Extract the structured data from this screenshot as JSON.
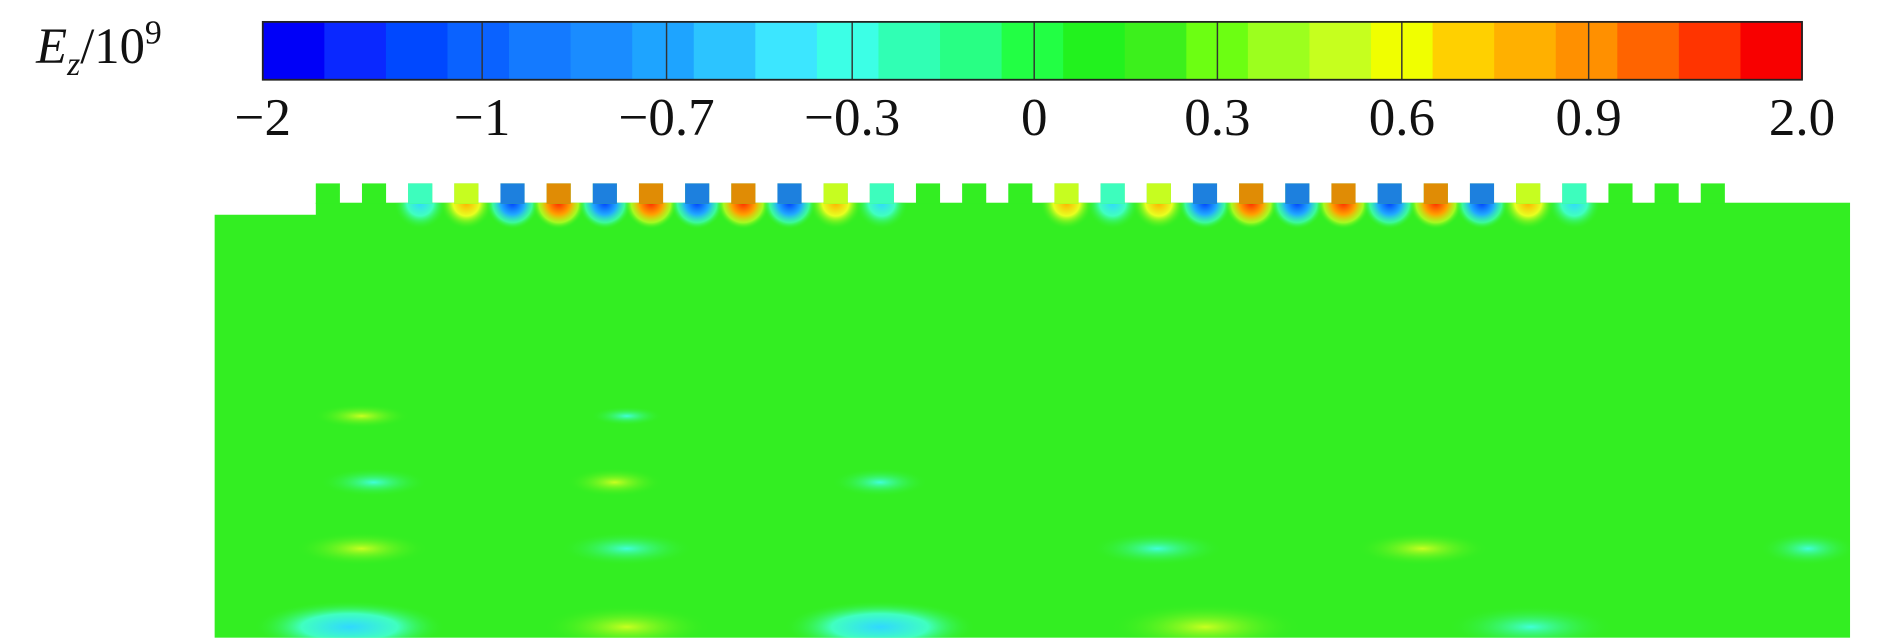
{
  "colorbar": {
    "label": {
      "symbol": "E",
      "subscript": "z",
      "rest": "/10",
      "superscript": "9"
    },
    "colors": [
      "#0000f8",
      "#0a28ff",
      "#0048ff",
      "#0a62ff",
      "#147aff",
      "#1a8cff",
      "#1ea4ff",
      "#2cc4ff",
      "#3ce6ff",
      "#3cffe6",
      "#30ffb4",
      "#28ff84",
      "#22ff44",
      "#22f21e",
      "#3cf01c",
      "#6cff12",
      "#9cff1e",
      "#c6ff1e",
      "#f0ff00",
      "#ffd000",
      "#ffb000",
      "#ff9000",
      "#ff6400",
      "#ff3400",
      "#f80000"
    ],
    "ticks": [
      {
        "value": -2,
        "label": "−2"
      },
      {
        "value": -1,
        "label": "−1"
      },
      {
        "value": -0.7,
        "label": "−0.7"
      },
      {
        "value": -0.3,
        "label": "−0.3"
      },
      0,
      0.3,
      0.6,
      0.9,
      {
        "value": 2,
        "label": "2.0"
      }
    ]
  }
}
